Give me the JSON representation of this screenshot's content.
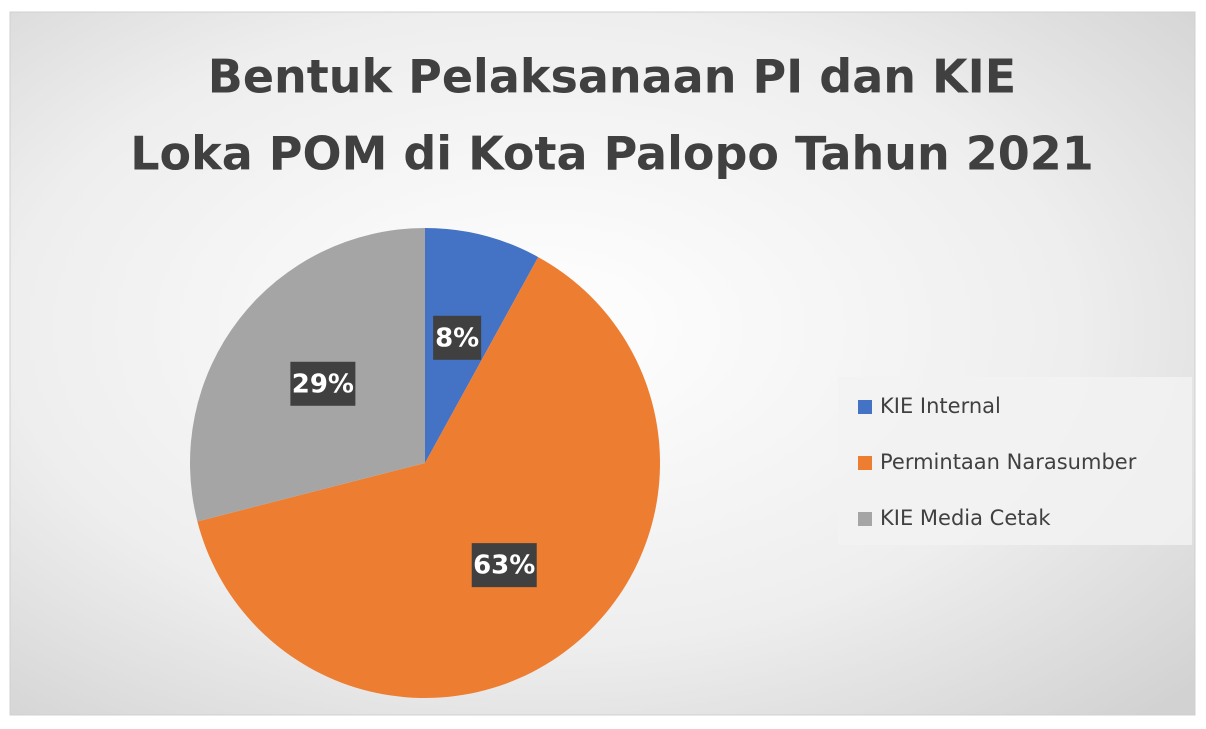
{
  "chart_data": {
    "type": "pie",
    "title": [
      "Bentuk Pelaksanaan PI dan KIE",
      "Loka POM di Kota Palopo Tahun 2021"
    ],
    "categories": [
      "KIE Internal",
      "Permintaan Narasumber",
      "KIE Media Cetak"
    ],
    "values": [
      8,
      63,
      29
    ],
    "value_labels": [
      "8%",
      "63%",
      "29%"
    ],
    "colors": [
      "#4472c4",
      "#ed7d31",
      "#a5a5a5"
    ],
    "legend": "right"
  }
}
